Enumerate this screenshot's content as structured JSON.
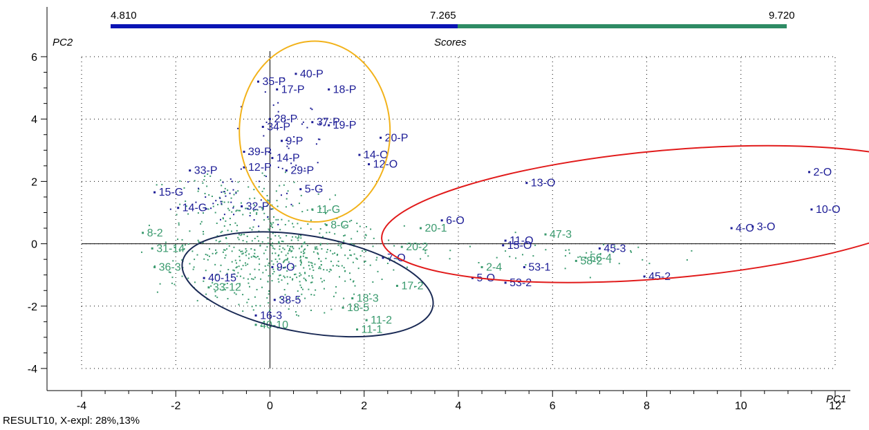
{
  "footer": "RESULT10, X-expl: 28%,13%",
  "chart_data": {
    "type": "scatter",
    "title": "Scores",
    "xlabel": "PC1",
    "ylabel": "PC2",
    "xlim": [
      -4,
      12
    ],
    "ylim": [
      -4,
      6
    ],
    "xticks": [
      -4,
      -2,
      0,
      2,
      4,
      6,
      8,
      10,
      12
    ],
    "yticks": [
      -4,
      -2,
      0,
      2,
      4,
      6
    ],
    "xtick_labels": [
      "-4",
      "-2",
      "0",
      "2",
      "4",
      "6",
      "8",
      "10",
      "12"
    ],
    "ytick_labels": [
      "-4",
      "-2",
      "0",
      "2",
      "4",
      "6"
    ],
    "grid": true,
    "color_scale": {
      "min": "4.810",
      "mid": "7.265",
      "max": "9.720",
      "low_color": "#0a14b4",
      "high_color": "#2e8b64"
    },
    "colors": {
      "blue": "#1c1c96",
      "green": "#3a9a6e",
      "orange": "#f2b21a",
      "red": "#e11a1a",
      "navy": "#1a2a55"
    },
    "ellipses": [
      {
        "color": "orange",
        "cx": 0.95,
        "cy": 3.6,
        "rx": 1.6,
        "ry": 2.9,
        "rotate": 0
      },
      {
        "color": "navy",
        "cx": 0.8,
        "cy": -1.3,
        "rx": 2.7,
        "ry": 1.55,
        "rotate": 10
      },
      {
        "color": "red",
        "cx": 8.45,
        "cy": 0.95,
        "rx": 6.1,
        "ry": 2.05,
        "rotate": -5
      }
    ],
    "labeled_points": [
      {
        "label": "40-P",
        "x": 0.55,
        "y": 5.45,
        "color": "blue"
      },
      {
        "label": "35-P",
        "x": -0.25,
        "y": 5.2,
        "color": "blue"
      },
      {
        "label": "17-P",
        "x": 0.15,
        "y": 4.95,
        "color": "blue"
      },
      {
        "label": "18-P",
        "x": 1.25,
        "y": 4.95,
        "color": "blue"
      },
      {
        "label": "28-P",
        "x": 0.0,
        "y": 4.0,
        "color": "blue"
      },
      {
        "label": "37-P",
        "x": 0.9,
        "y": 3.9,
        "color": "blue"
      },
      {
        "label": "19-P",
        "x": 1.25,
        "y": 3.8,
        "color": "blue"
      },
      {
        "label": "34-P",
        "x": -0.15,
        "y": 3.75,
        "color": "blue"
      },
      {
        "label": "20-P",
        "x": 2.35,
        "y": 3.4,
        "color": "blue"
      },
      {
        "label": "9-P",
        "x": 0.25,
        "y": 3.3,
        "color": "blue"
      },
      {
        "label": "14-O",
        "x": 1.9,
        "y": 2.85,
        "color": "blue"
      },
      {
        "label": "12-O",
        "x": 2.1,
        "y": 2.55,
        "color": "blue"
      },
      {
        "label": "39-P",
        "x": -0.55,
        "y": 2.95,
        "color": "blue"
      },
      {
        "label": "14-P",
        "x": 0.05,
        "y": 2.75,
        "color": "blue"
      },
      {
        "label": "12-P",
        "x": -0.55,
        "y": 2.45,
        "color": "blue"
      },
      {
        "label": "29-P",
        "x": 0.35,
        "y": 2.35,
        "color": "blue"
      },
      {
        "label": "5-G",
        "x": 0.65,
        "y": 1.75,
        "color": "blue"
      },
      {
        "label": "33-P",
        "x": -1.7,
        "y": 2.35,
        "color": "blue"
      },
      {
        "label": "15-G",
        "x": -2.45,
        "y": 1.65,
        "color": "blue"
      },
      {
        "label": "14-G",
        "x": -1.95,
        "y": 1.15,
        "color": "blue"
      },
      {
        "label": "32-P",
        "x": -0.6,
        "y": 1.2,
        "color": "blue"
      },
      {
        "label": "13-O",
        "x": 5.45,
        "y": 1.95,
        "color": "blue"
      },
      {
        "label": "2-O",
        "x": 11.45,
        "y": 2.3,
        "color": "blue"
      },
      {
        "label": "10-O",
        "x": 11.5,
        "y": 1.1,
        "color": "blue"
      },
      {
        "label": "4-O",
        "x": 9.8,
        "y": 0.5,
        "color": "blue"
      },
      {
        "label": "3-O",
        "x": 10.25,
        "y": 0.55,
        "color": "blue"
      },
      {
        "label": "6-O",
        "x": 3.65,
        "y": 0.75,
        "color": "blue"
      },
      {
        "label": "11-O",
        "x": 5.0,
        "y": 0.1,
        "color": "blue"
      },
      {
        "label": "15-O",
        "x": 4.95,
        "y": -0.05,
        "color": "blue"
      },
      {
        "label": "45-3",
        "x": 7.0,
        "y": -0.15,
        "color": "blue"
      },
      {
        "label": "53-1",
        "x": 5.4,
        "y": -0.75,
        "color": "blue"
      },
      {
        "label": "53-2",
        "x": 5.0,
        "y": -1.25,
        "color": "blue"
      },
      {
        "label": "5-O",
        "x": 4.3,
        "y": -1.1,
        "color": "blue"
      },
      {
        "label": "7-O",
        "x": 2.4,
        "y": -0.45,
        "color": "blue"
      },
      {
        "label": "45-2",
        "x": 7.95,
        "y": -1.05,
        "color": "blue"
      },
      {
        "label": "9-O",
        "x": 0.05,
        "y": -0.75,
        "color": "blue"
      },
      {
        "label": "40-15",
        "x": -1.4,
        "y": -1.1,
        "color": "blue"
      },
      {
        "label": "38-5",
        "x": 0.1,
        "y": -1.8,
        "color": "blue"
      },
      {
        "label": "16-3",
        "x": -0.3,
        "y": -2.3,
        "color": "blue"
      },
      {
        "label": "20-1",
        "x": 3.2,
        "y": 0.5,
        "color": "green"
      },
      {
        "label": "47-3",
        "x": 5.85,
        "y": 0.3,
        "color": "green"
      },
      {
        "label": "20-2",
        "x": 2.8,
        "y": -0.1,
        "color": "green"
      },
      {
        "label": "8-G",
        "x": 1.2,
        "y": 0.6,
        "color": "green"
      },
      {
        "label": "11-G",
        "x": 0.9,
        "y": 1.1,
        "color": "green"
      },
      {
        "label": "18-3",
        "x": 1.75,
        "y": -1.75,
        "color": "green"
      },
      {
        "label": "18-5",
        "x": 1.55,
        "y": -2.05,
        "color": "green"
      },
      {
        "label": "11-2",
        "x": 2.05,
        "y": -2.45,
        "color": "green"
      },
      {
        "label": "11-1",
        "x": 1.85,
        "y": -2.75,
        "color": "green"
      },
      {
        "label": "40-10",
        "x": -0.3,
        "y": -2.6,
        "color": "green"
      },
      {
        "label": "17-2",
        "x": 2.7,
        "y": -1.35,
        "color": "green"
      },
      {
        "label": "2-4",
        "x": 4.5,
        "y": -0.75,
        "color": "green"
      },
      {
        "label": "56-4",
        "x": 6.7,
        "y": -0.45,
        "color": "green"
      },
      {
        "label": "58-2",
        "x": 6.5,
        "y": -0.55,
        "color": "green"
      },
      {
        "label": "8-2",
        "x": -2.7,
        "y": 0.35,
        "color": "green"
      },
      {
        "label": "31-14",
        "x": -2.5,
        "y": -0.15,
        "color": "green"
      },
      {
        "label": "36-3",
        "x": -2.45,
        "y": -0.75,
        "color": "green"
      },
      {
        "label": "33-12",
        "x": -1.3,
        "y": -1.4,
        "color": "green"
      }
    ]
  }
}
